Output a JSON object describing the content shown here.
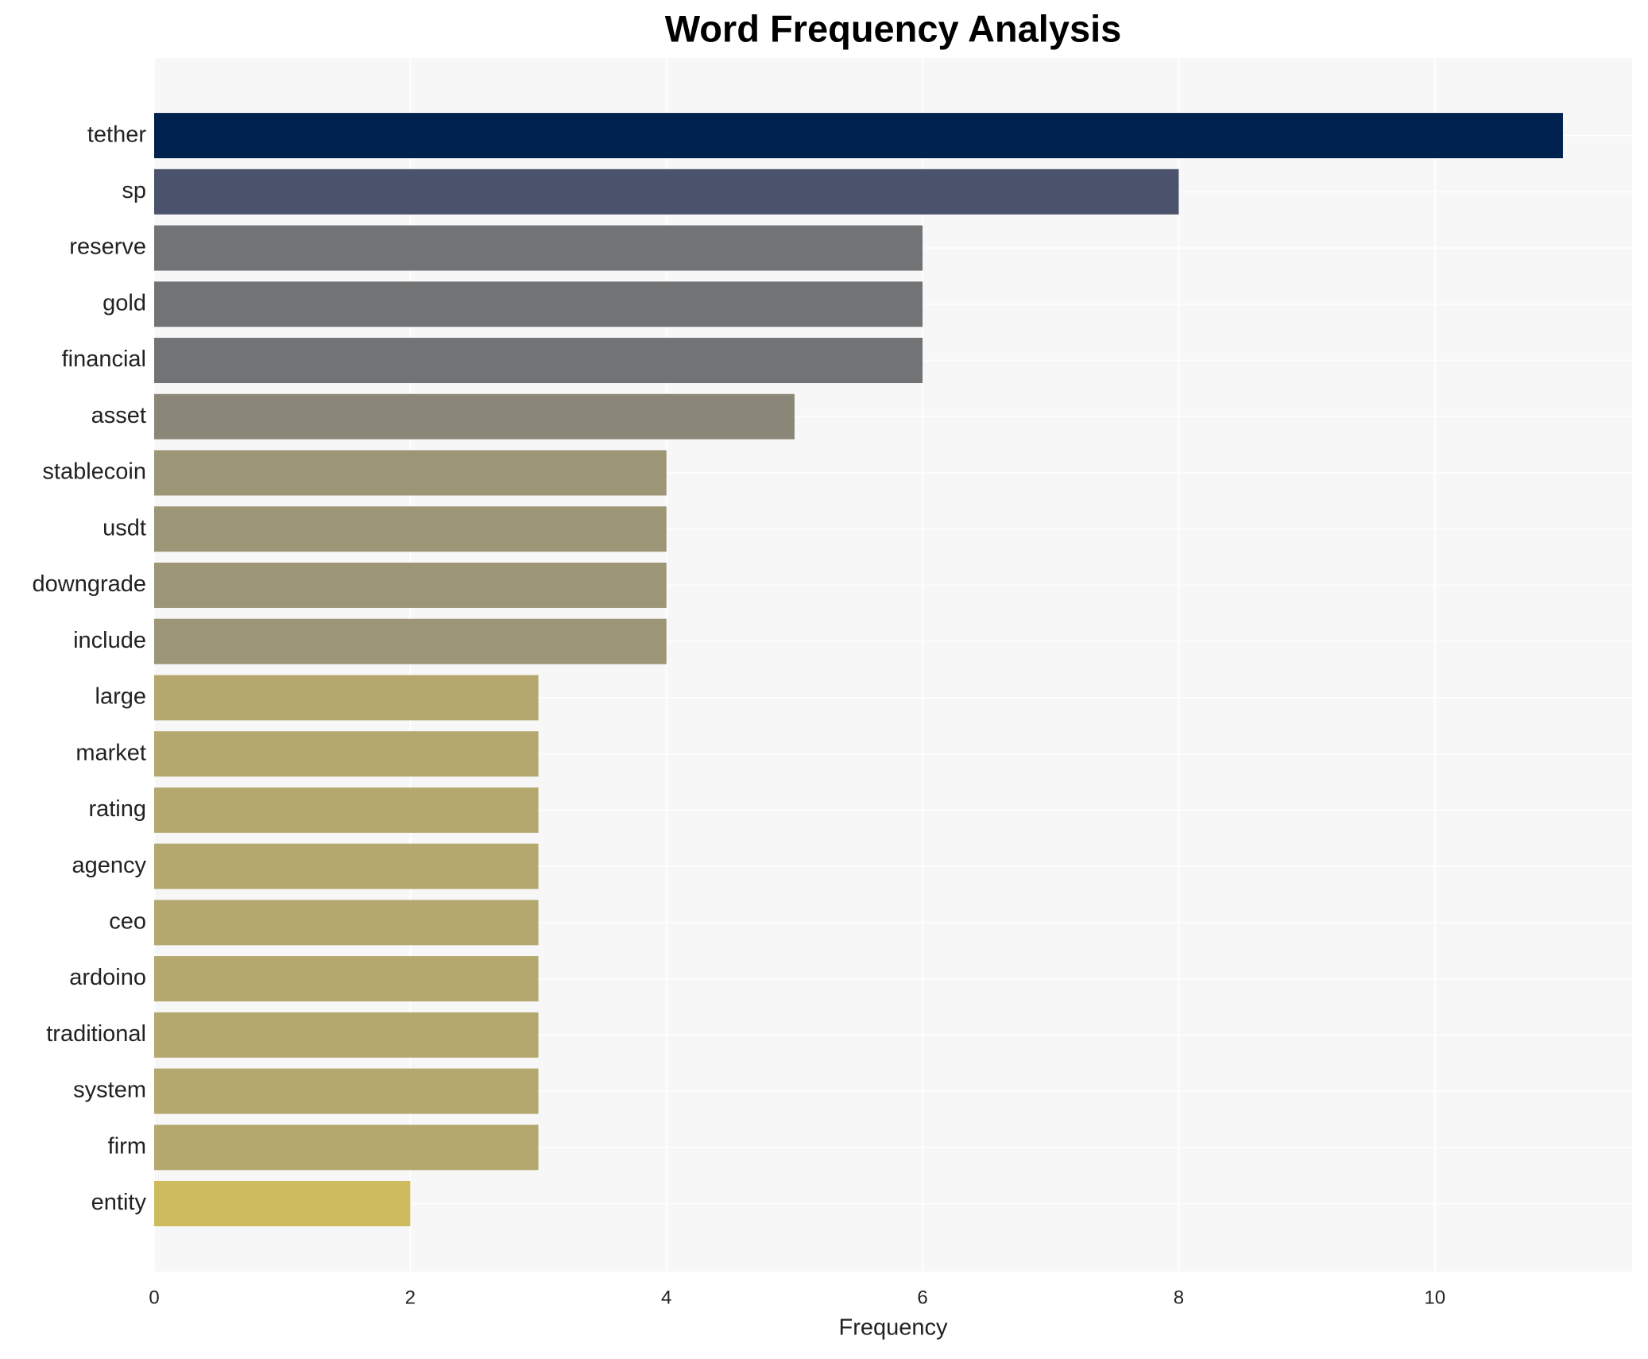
{
  "chart_data": {
    "type": "barh",
    "title": "Word Frequency Analysis",
    "xlabel": "Frequency",
    "categories": [
      "tether",
      "sp",
      "reserve",
      "gold",
      "financial",
      "asset",
      "stablecoin",
      "usdt",
      "downgrade",
      "include",
      "large",
      "market",
      "rating",
      "agency",
      "ceo",
      "ardoino",
      "traditional",
      "system",
      "firm",
      "entity"
    ],
    "values": [
      11,
      8,
      6,
      6,
      6,
      5,
      4,
      4,
      4,
      4,
      3,
      3,
      3,
      3,
      3,
      3,
      3,
      3,
      3,
      2
    ],
    "colors": [
      "#00224e",
      "#4a536b",
      "#727374",
      "#727374",
      "#727374",
      "#8a8779",
      "#9c9576",
      "#9c9576",
      "#9c9576",
      "#9c9576",
      "#b4a86f",
      "#b4a86f",
      "#b4a86f",
      "#b4a86f",
      "#b4a86f",
      "#b4a86f",
      "#b4a86f",
      "#b4a86f",
      "#b4a86f",
      "#cdbb5e"
    ],
    "xlim": [
      0,
      11.54
    ],
    "xticks": [
      0,
      2,
      4,
      6,
      8,
      10
    ],
    "grid": true
  }
}
